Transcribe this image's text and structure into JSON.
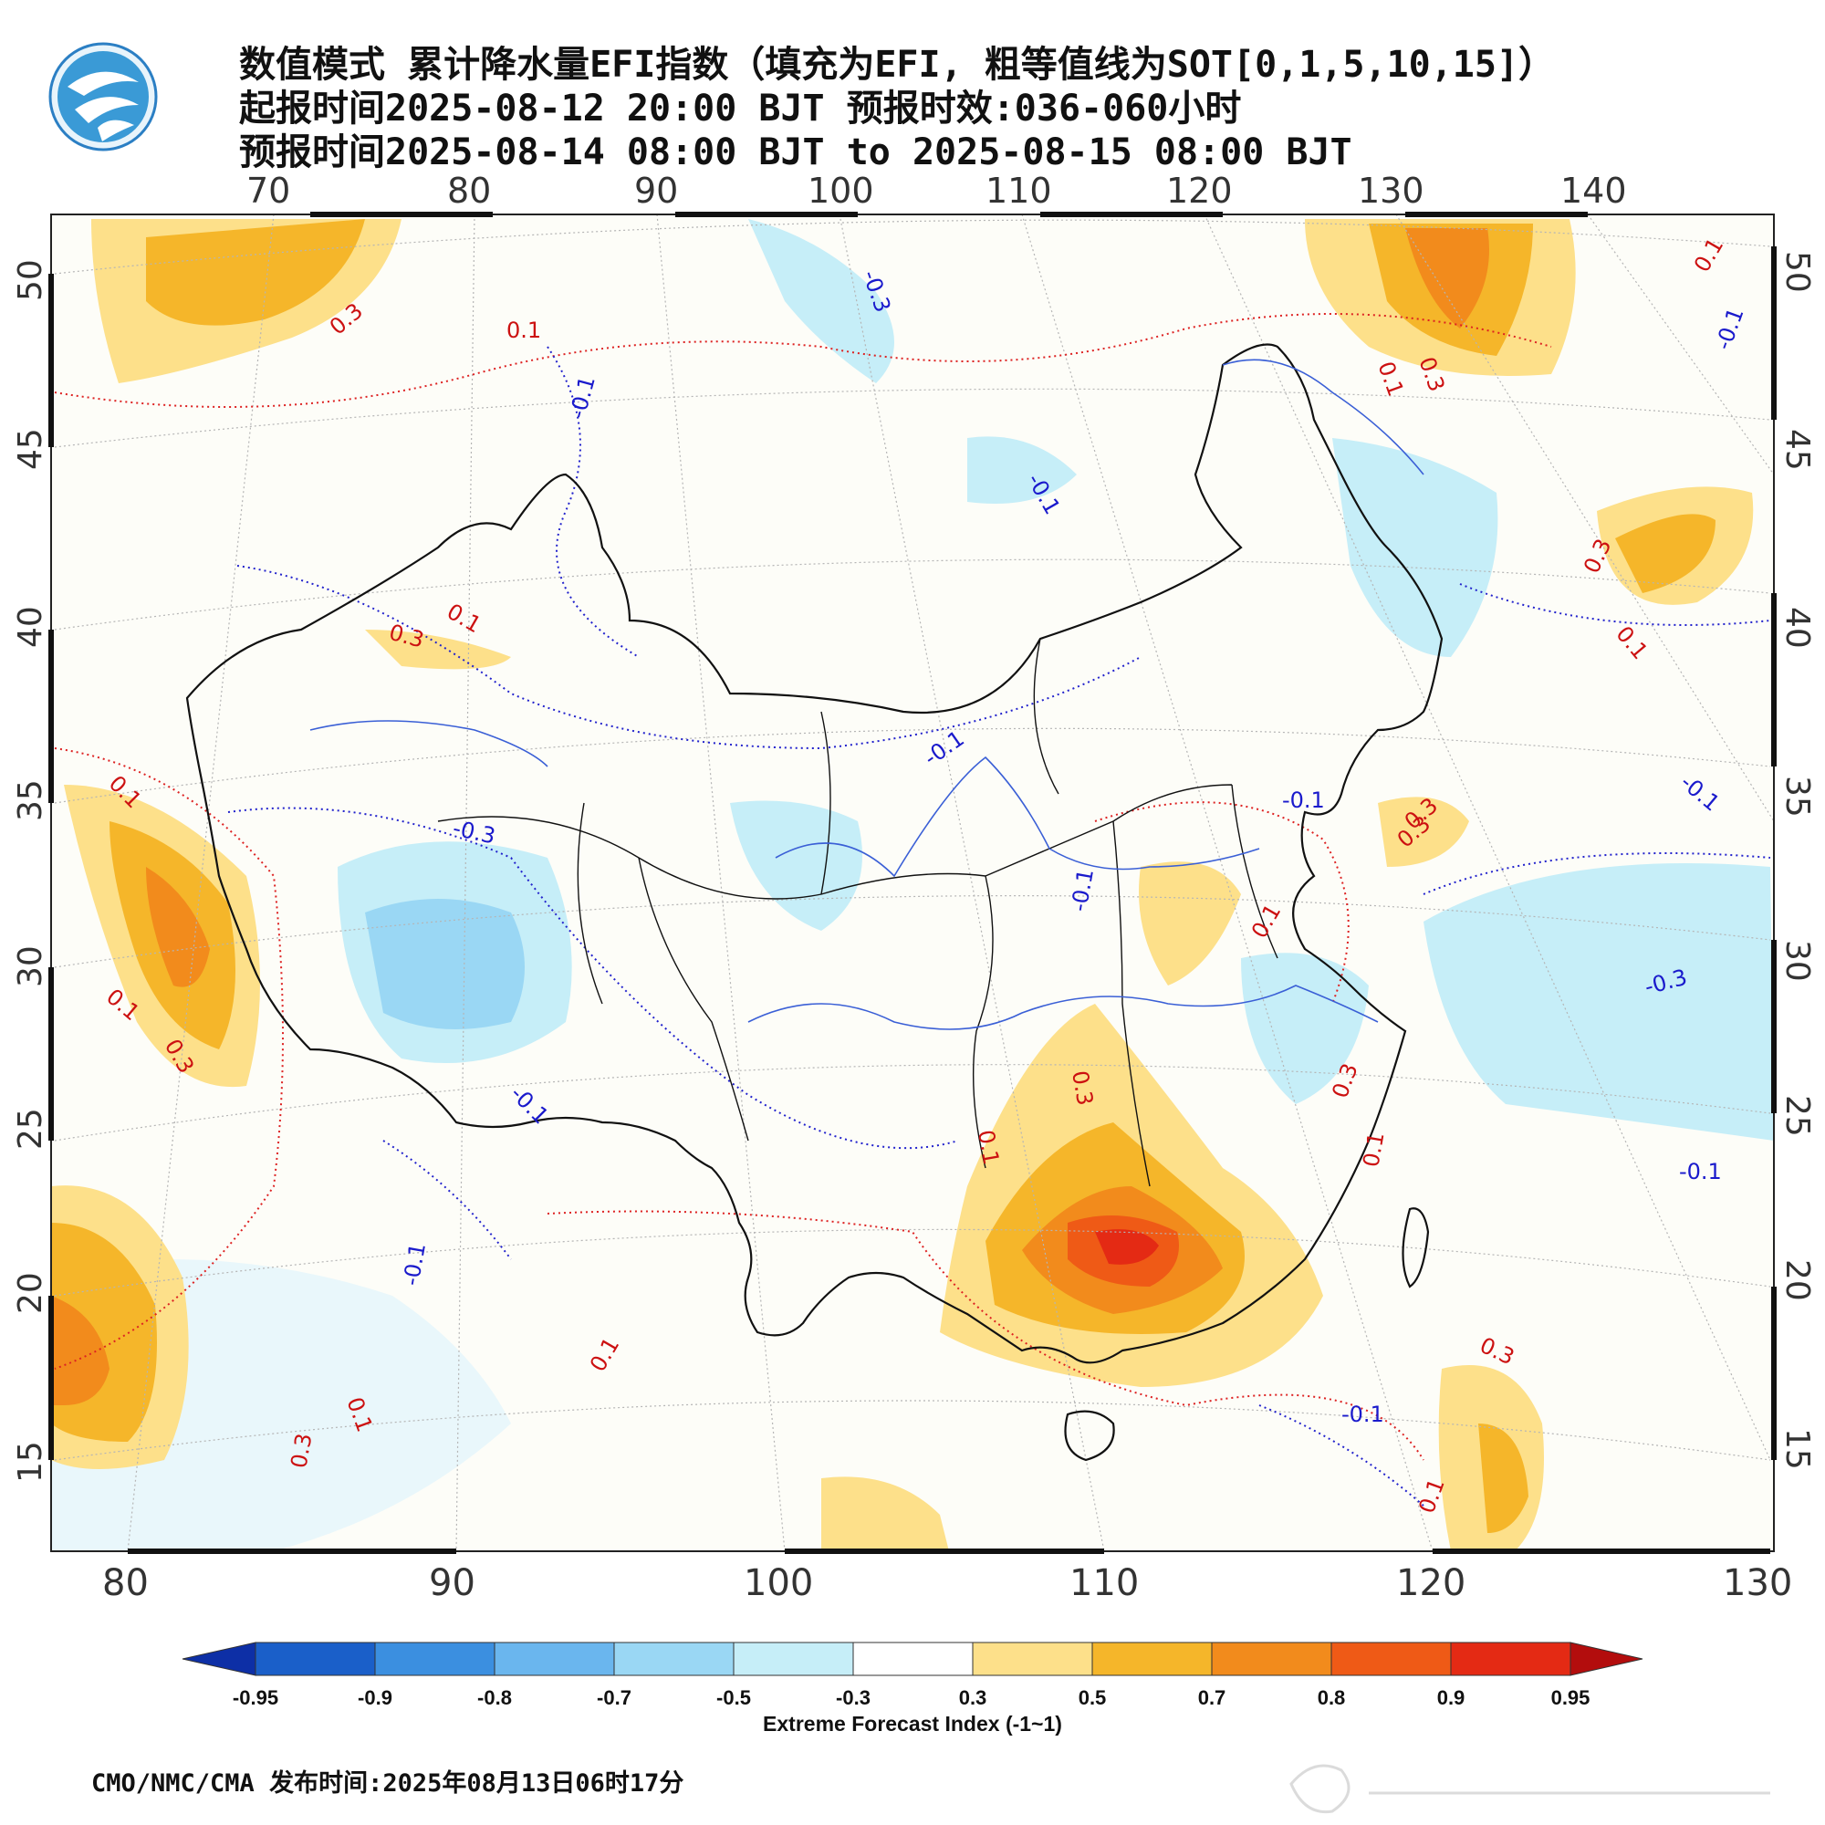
{
  "header": {
    "title_line1": "数值模式 累计降水量EFI指数（填充为EFI, 粗等值线为SOT[0,1,5,10,15]）",
    "title_line2": "起报时间2025-08-12 20:00 BJT 预报时效:036-060小时",
    "title_line3": "预报时间2025-08-14 08:00 BJT to 2025-08-15 08:00 BJT"
  },
  "map": {
    "top_lon_labels": [
      "70",
      "80",
      "90",
      "100",
      "110",
      "120",
      "130",
      "140"
    ],
    "bottom_lon_labels": [
      "80",
      "90",
      "100",
      "110",
      "120",
      "130"
    ],
    "left_lat_labels": [
      "50",
      "45",
      "40",
      "35",
      "30",
      "25",
      "20",
      "15"
    ],
    "right_lat_labels": [
      "50",
      "45",
      "40",
      "35",
      "30",
      "25",
      "20",
      "15"
    ],
    "contour_labels": [
      {
        "text": "0.3",
        "color": "red"
      },
      {
        "text": "0.1",
        "color": "red"
      },
      {
        "text": "-0.3",
        "color": "blue"
      },
      {
        "text": "-0.1",
        "color": "blue"
      },
      {
        "text": "0.3",
        "color": "red"
      },
      {
        "text": "0.1",
        "color": "red"
      },
      {
        "text": "-0.1",
        "color": "blue"
      },
      {
        "text": "0.1",
        "color": "red"
      },
      {
        "text": "-0.1",
        "color": "blue"
      },
      {
        "text": "0.1",
        "color": "red"
      },
      {
        "text": "0.3",
        "color": "red"
      },
      {
        "text": "-0.1",
        "color": "blue"
      },
      {
        "text": "0.3",
        "color": "red"
      },
      {
        "text": "0.1",
        "color": "red"
      },
      {
        "text": "-0.3",
        "color": "blue"
      },
      {
        "text": "0.1",
        "color": "red"
      },
      {
        "text": "-0.1",
        "color": "blue"
      },
      {
        "text": "-0.1",
        "color": "blue"
      },
      {
        "text": "0.3",
        "color": "red"
      },
      {
        "text": "0.1",
        "color": "red"
      },
      {
        "text": "0.3",
        "color": "red"
      },
      {
        "text": "0.1",
        "color": "red"
      },
      {
        "text": "0.3",
        "color": "red"
      },
      {
        "text": "-0.1",
        "color": "blue"
      },
      {
        "text": "-0.3",
        "color": "blue"
      },
      {
        "text": "-0.1",
        "color": "blue"
      },
      {
        "text": "0.3",
        "color": "red"
      },
      {
        "text": "0.1",
        "color": "red"
      },
      {
        "text": "-0.1",
        "color": "blue"
      },
      {
        "text": "0.3",
        "color": "red"
      },
      {
        "text": "-0.1",
        "color": "blue"
      },
      {
        "text": "0.1",
        "color": "red"
      },
      {
        "text": "0.1",
        "color": "red"
      },
      {
        "text": "0.3",
        "color": "red"
      },
      {
        "text": "0.1",
        "color": "red"
      },
      {
        "text": "-0.1",
        "color": "blue"
      },
      {
        "text": "0.1",
        "color": "red"
      },
      {
        "text": "0.3",
        "color": "red"
      }
    ]
  },
  "colorbar": {
    "colors": [
      "#0d2fa6",
      "#1a5fc9",
      "#3b8fe0",
      "#6ab6ee",
      "#9ad7f4",
      "#c6eef8",
      "#ffffff",
      "#fde08a",
      "#f5b62a",
      "#f28b1c",
      "#ef5a16",
      "#e42a14",
      "#b30d0d"
    ],
    "labels": [
      "-0.95",
      "-0.9",
      "-0.8",
      "-0.7",
      "-0.5",
      "-0.3",
      "0.3",
      "0.5",
      "0.7",
      "0.8",
      "0.9",
      "0.95"
    ],
    "title": "Extreme Forecast Index (-1~1)"
  },
  "footer": {
    "text": "CMO/NMC/CMA 发布时间:2025年08月13日06时17分"
  },
  "logo_icon": "cma-logo-icon"
}
